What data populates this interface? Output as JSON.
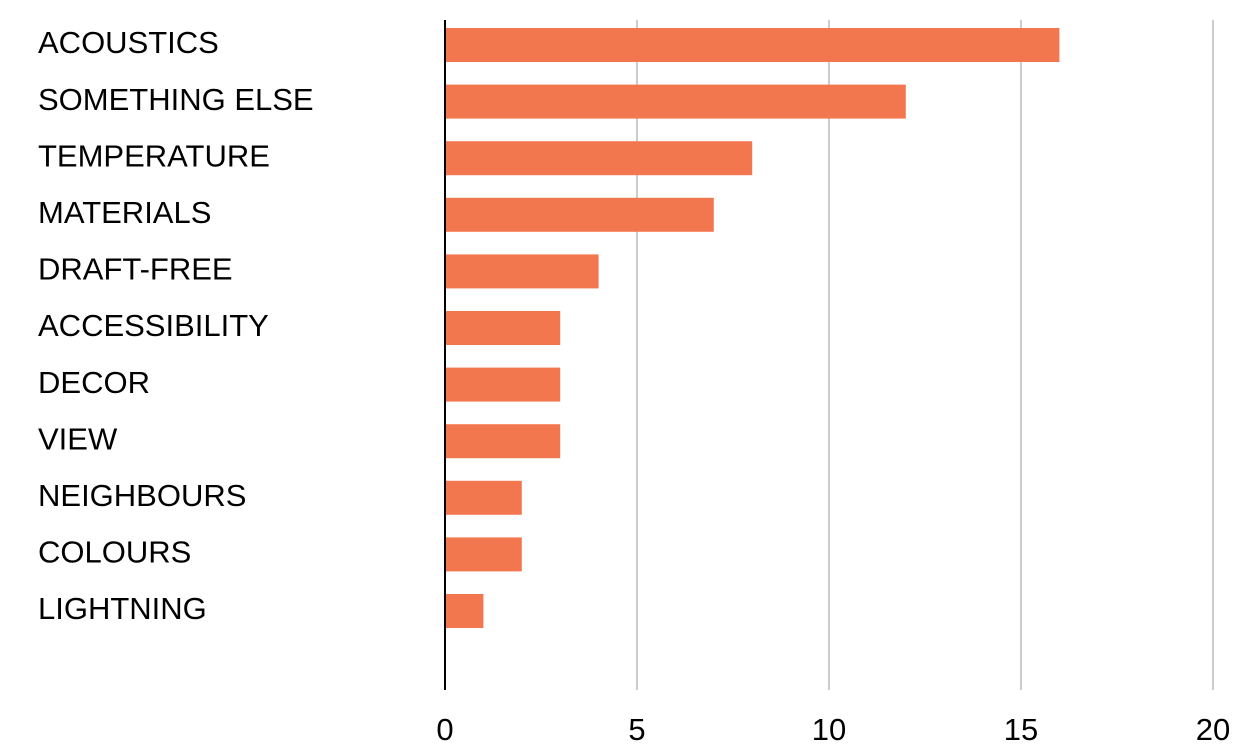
{
  "chart_data": {
    "type": "bar",
    "orientation": "horizontal",
    "categories": [
      "ACOUSTICS",
      "SOMETHING ELSE",
      "TEMPERATURE",
      "MATERIALS",
      "DRAFT-FREE",
      "ACCESSIBILITY",
      "DECOR",
      "VIEW",
      "NEIGHBOURS",
      "COLOURS",
      "LIGHTNING"
    ],
    "values": [
      16,
      12,
      8,
      7,
      4,
      3,
      3,
      3,
      2,
      2,
      1
    ],
    "xlim": [
      0,
      20
    ],
    "xticks": [
      0,
      5,
      10,
      15,
      20
    ],
    "grid": true,
    "bar_color": "#f3774e",
    "grid_color": "#cccccc",
    "axis_color": "#000000"
  }
}
